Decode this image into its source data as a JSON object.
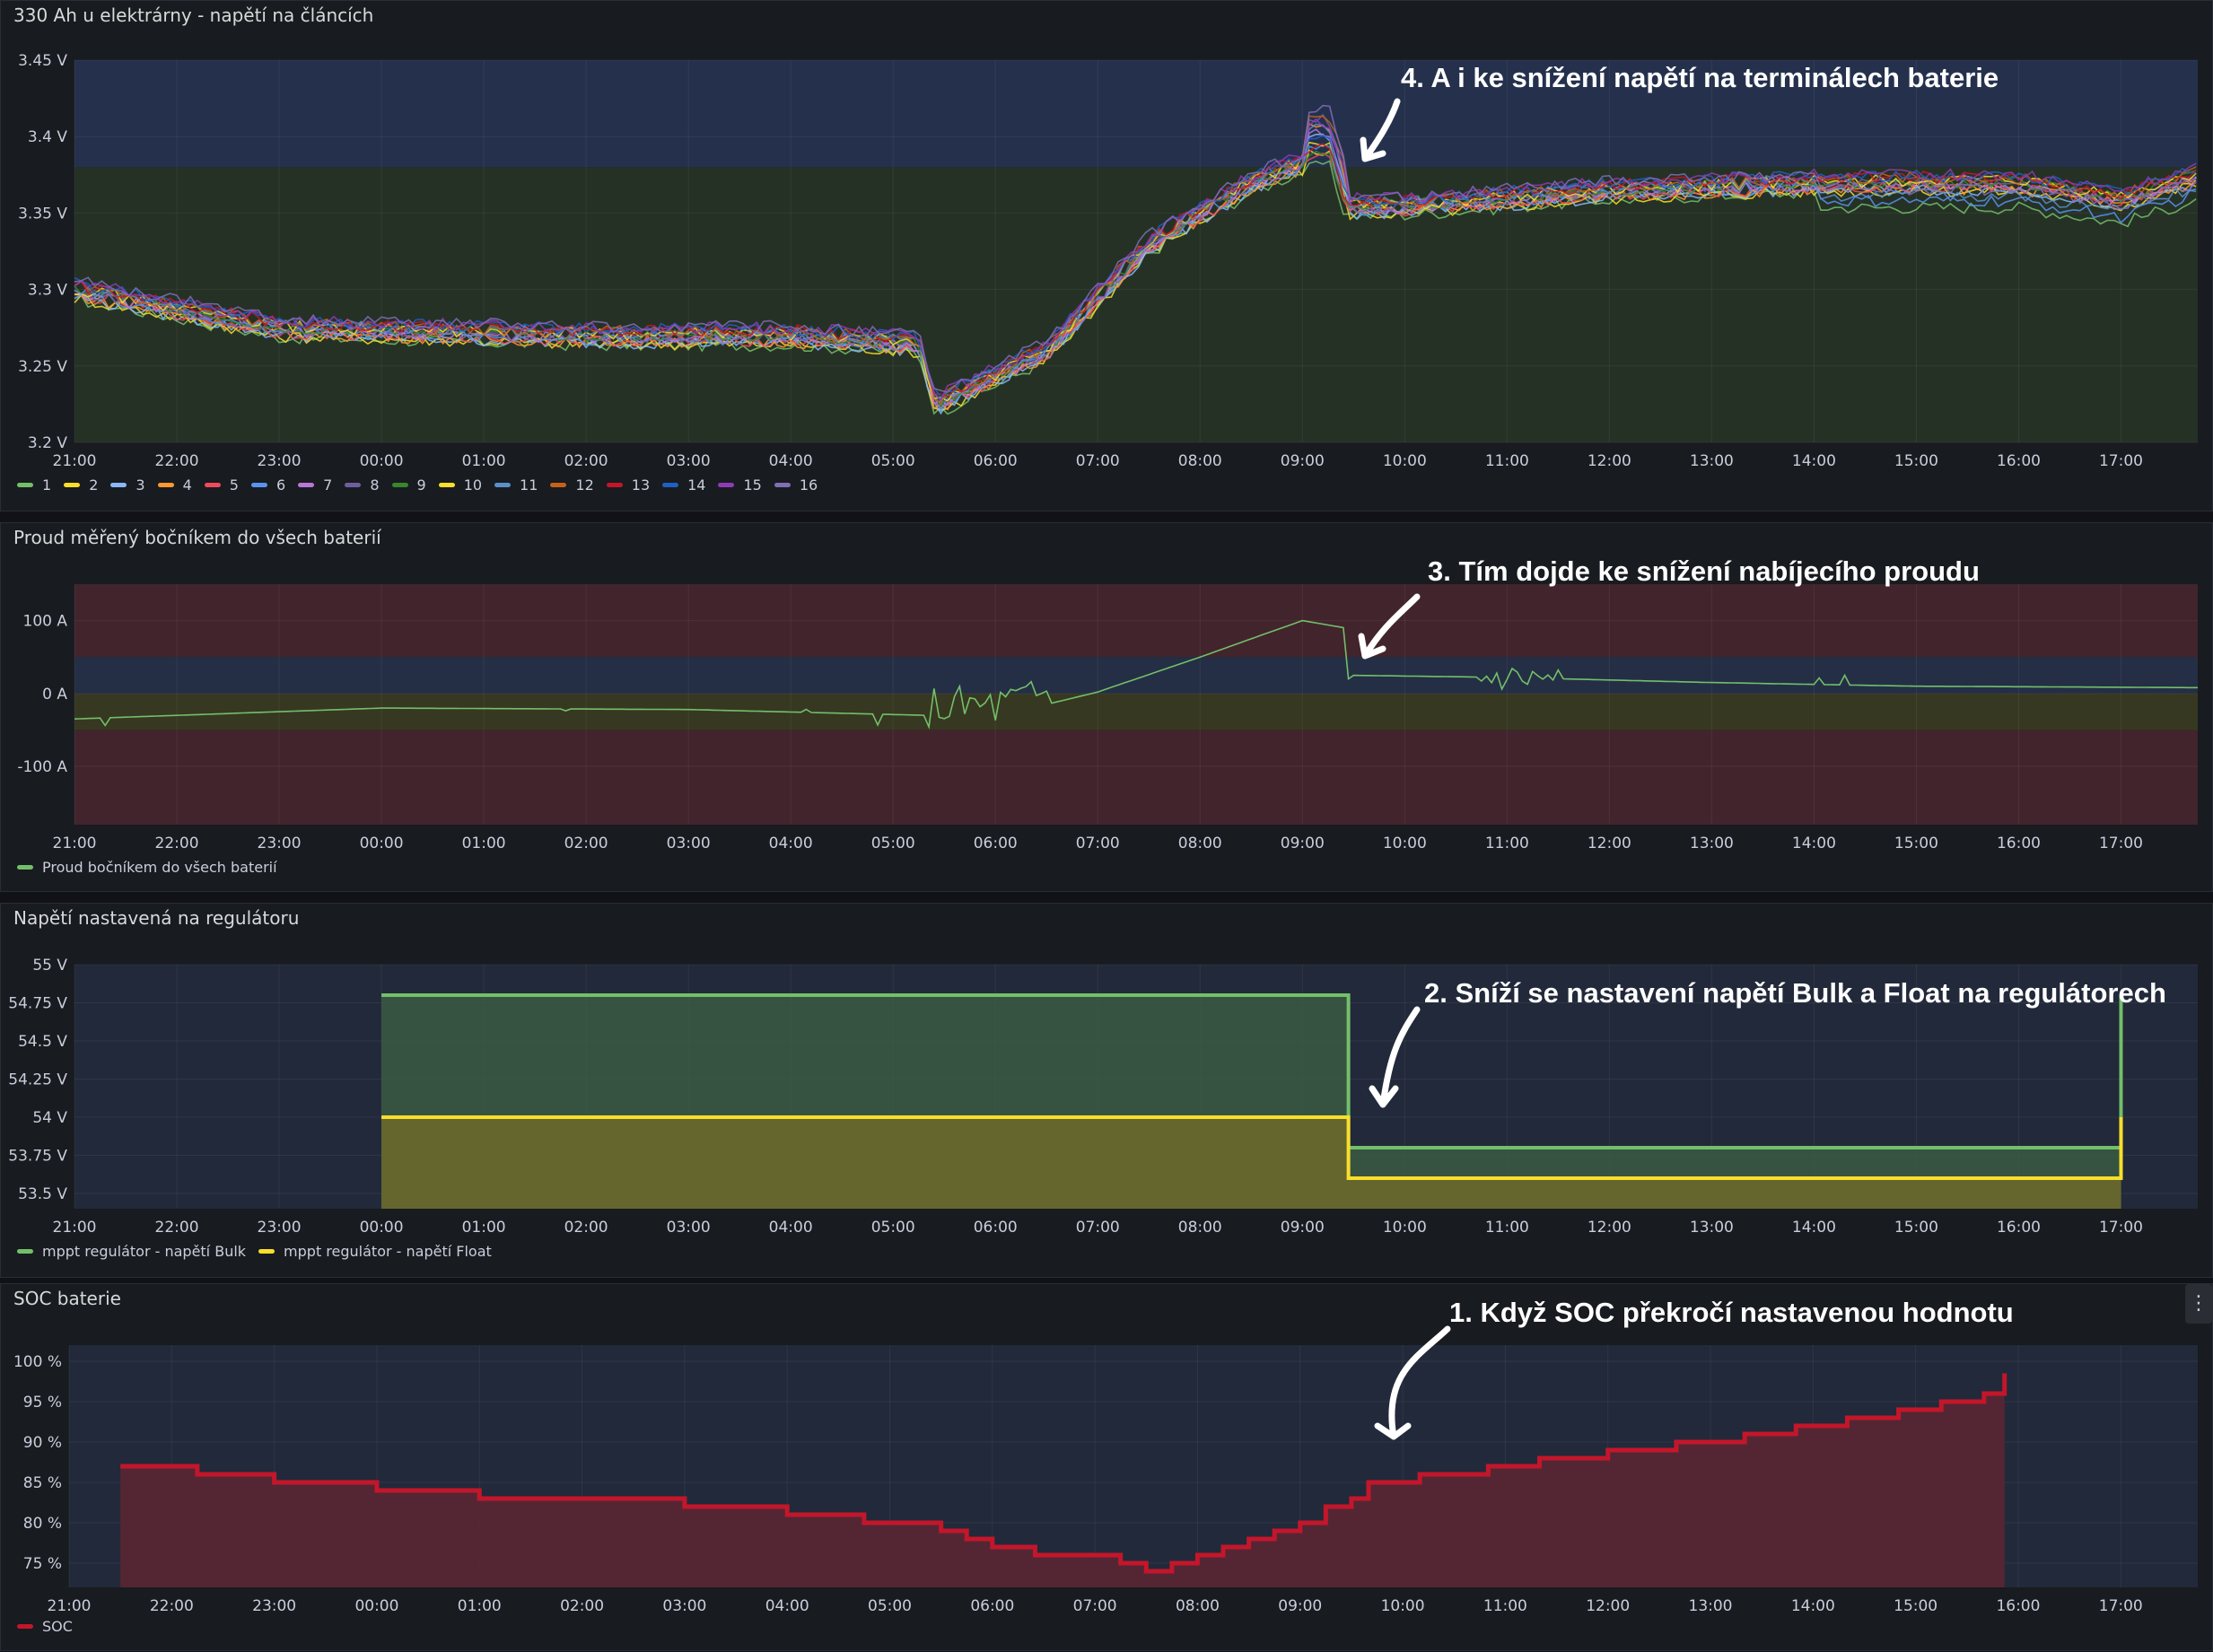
{
  "time_ticks": [
    "21:00",
    "22:00",
    "23:00",
    "00:00",
    "01:00",
    "02:00",
    "03:00",
    "04:00",
    "05:00",
    "06:00",
    "07:00",
    "08:00",
    "09:00",
    "10:00",
    "11:00",
    "12:00",
    "13:00",
    "14:00",
    "15:00",
    "16:00",
    "17:00"
  ],
  "panels": {
    "cells": {
      "title": "330 Ah u elektrárny - napětí na článcích",
      "annotation": "4. A i ke snížení napětí na terminálech baterie",
      "y_ticks": [
        "3.45 V",
        "3.4 V",
        "3.35 V",
        "3.3 V",
        "3.25 V",
        "3.2 V"
      ],
      "legend": [
        "1",
        "2",
        "3",
        "4",
        "5",
        "6",
        "7",
        "8",
        "9",
        "10",
        "11",
        "12",
        "13",
        "14",
        "15",
        "16"
      ],
      "colors": [
        "#73bf69",
        "#fade2a",
        "#8ab8ff",
        "#ff9830",
        "#f2495c",
        "#5794f2",
        "#b877d9",
        "#705da0",
        "#37872d",
        "#fade2a",
        "#5a8fcb",
        "#c4621a",
        "#c4162a",
        "#1f60c4",
        "#8f3bb8",
        "#806eb7"
      ]
    },
    "current": {
      "title": "Proud měřený bočníkem do všech baterií",
      "annotation": "3. Tím dojde ke snížení nabíjecího proudu",
      "y_ticks": [
        "100 A",
        "0 A",
        "-100 A"
      ],
      "legend": [
        "Proud bočníkem do všech baterií"
      ],
      "colors": [
        "#73bf69"
      ]
    },
    "regulator": {
      "title": "Napětí nastavená na regulátoru",
      "annotation": "2. Sníží se nastavení napětí Bulk a Float na regulátorech",
      "y_ticks": [
        "55 V",
        "54.75 V",
        "54.5 V",
        "54.25 V",
        "54 V",
        "53.75 V",
        "53.5 V"
      ],
      "legend": [
        "mppt regulátor - napětí Bulk",
        "mppt regulátor - napětí Float"
      ],
      "colors": [
        "#73bf69",
        "#fade2a"
      ]
    },
    "soc": {
      "title": "SOC baterie",
      "annotation": "1. Když SOC překročí nastavenou hodnotu",
      "y_ticks": [
        "100 %",
        "95 %",
        "90 %",
        "85 %",
        "80 %",
        "75 %"
      ],
      "legend": [
        "SOC"
      ],
      "colors": [
        "#c4162a"
      ],
      "menu_icon": "⋮"
    }
  },
  "chart_data": [
    {
      "type": "line",
      "title": "330 Ah u elektrárny - napětí na článcích",
      "ylim": [
        3.2,
        3.45
      ],
      "x_range": [
        "21:00",
        "17:45"
      ],
      "series_names": [
        "1",
        "2",
        "3",
        "4",
        "5",
        "6",
        "7",
        "8",
        "9",
        "10",
        "11",
        "12",
        "13",
        "14",
        "15",
        "16"
      ],
      "x": [
        "21:00",
        "23:00",
        "02:00",
        "03:00",
        "04:00",
        "05:15",
        "05:25",
        "06:30",
        "07:30",
        "08:30",
        "09:15",
        "09:25",
        "10:00",
        "11:00",
        "12:00",
        "14:00",
        "16:00",
        "17:00",
        "17:45"
      ],
      "values_typical": [
        3.3,
        3.275,
        3.27,
        3.27,
        3.27,
        3.265,
        3.225,
        3.26,
        3.33,
        3.37,
        3.39,
        3.355,
        3.355,
        3.36,
        3.365,
        3.37,
        3.37,
        3.36,
        3.375
      ],
      "thresholds": [
        {
          "from": 3.38,
          "to": 3.45,
          "color": "blue"
        },
        {
          "from": 3.2,
          "to": 3.38,
          "color": "green"
        }
      ]
    },
    {
      "type": "line",
      "title": "Proud měřený bočníkem do všech baterií",
      "ylim": [
        -180,
        150
      ],
      "x": [
        "21:00",
        "00:00",
        "03:00",
        "05:20",
        "06:00",
        "06:30",
        "07:00",
        "08:00",
        "09:00",
        "09:25",
        "09:27",
        "11:00",
        "13:00",
        "15:00",
        "17:45"
      ],
      "values": [
        -35,
        -20,
        -22,
        -30,
        -30,
        -15,
        2,
        50,
        100,
        90,
        25,
        22,
        15,
        10,
        8
      ],
      "series_names": [
        "Proud bočníkem do všech baterií"
      ],
      "thresholds": [
        {
          "from": 50,
          "to": 150,
          "color": "red"
        },
        {
          "from": 0,
          "to": 50,
          "color": "blue"
        },
        {
          "from": -50,
          "to": 0,
          "color": "yellow"
        },
        {
          "from": -180,
          "to": -50,
          "color": "red"
        }
      ]
    },
    {
      "type": "area",
      "title": "Napětí nastavená na regulátoru",
      "ylim": [
        53.4,
        55
      ],
      "series": [
        {
          "name": "mppt regulátor - napětí Bulk",
          "x": [
            "00:00",
            "09:25",
            "09:27",
            "17:00",
            "17:00"
          ],
          "values": [
            54.8,
            54.8,
            53.8,
            53.8,
            54.8
          ]
        },
        {
          "name": "mppt regulátor - napětí Float",
          "x": [
            "00:00",
            "09:25",
            "09:27",
            "17:00",
            "17:00"
          ],
          "values": [
            54.0,
            54.0,
            53.6,
            53.6,
            54.0
          ]
        }
      ]
    },
    {
      "type": "area",
      "title": "SOC baterie",
      "ylim": [
        72,
        102
      ],
      "series": [
        {
          "name": "SOC",
          "x": [
            "21:30",
            "22:15",
            "23:00",
            "00:00",
            "01:00",
            "02:00",
            "03:00",
            "04:00",
            "04:45",
            "05:30",
            "05:45",
            "06:00",
            "06:25",
            "07:15",
            "07:30",
            "07:45",
            "08:00",
            "08:15",
            "08:30",
            "08:45",
            "09:00",
            "09:15",
            "09:30",
            "09:40",
            "10:10",
            "10:50",
            "11:20",
            "12:00",
            "12:40",
            "13:20",
            "13:50",
            "14:20",
            "14:50",
            "15:15",
            "15:40",
            "15:52"
          ],
          "values": [
            87,
            86,
            85,
            84,
            83,
            83,
            82,
            81,
            80,
            79,
            78,
            77,
            76,
            75,
            74,
            75,
            76,
            77,
            78,
            79,
            80,
            82,
            83,
            85,
            86,
            87,
            88,
            89,
            90,
            91,
            92,
            93,
            94,
            95,
            96,
            97
          ]
        }
      ]
    }
  ]
}
